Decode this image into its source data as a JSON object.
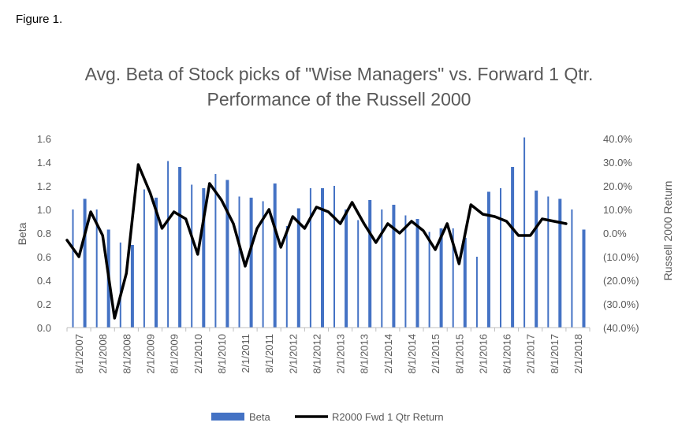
{
  "figure_label": "Figure 1.",
  "chart_data": {
    "type": "bar+line",
    "title": "Avg. Beta of Stock picks of \"Wise Managers\" vs. Forward 1 Qtr. Performance of the Russell 2000",
    "ylabel_left": "Beta",
    "ylabel_right": "Russell 2000 Return",
    "ylim_left": [
      0,
      1.6
    ],
    "ylim_right": [
      -40,
      40
    ],
    "left_ticks": [
      "0.0",
      "0.2",
      "0.4",
      "0.6",
      "0.8",
      "1.0",
      "1.2",
      "1.4",
      "1.6"
    ],
    "right_ticks": [
      "(40.0%)",
      "(30.0%)",
      "(20.0%)",
      "(10.0%)",
      "0.0%",
      "10.0%",
      "20.0%",
      "30.0%",
      "40.0%"
    ],
    "negative_tick_color": "#ff0000",
    "x_tick_labels": [
      "8/1/2007",
      "2/1/2008",
      "8/1/2008",
      "2/1/2009",
      "8/1/2009",
      "2/1/2010",
      "8/1/2010",
      "2/1/2011",
      "8/1/2011",
      "2/1/2012",
      "8/1/2012",
      "2/1/2013",
      "8/1/2013",
      "2/1/2014",
      "8/1/2014",
      "2/1/2015",
      "8/1/2015",
      "2/1/2016",
      "8/1/2016",
      "2/1/2017",
      "8/1/2017",
      "2/1/2018"
    ],
    "legend_position": "bottom",
    "grid": false,
    "series": [
      {
        "name": "Beta",
        "type": "bar",
        "axis": "left",
        "color": "#4472c4",
        "values": [
          1.0,
          1.09,
          1.0,
          0.83,
          0.72,
          0.7,
          1.17,
          1.1,
          1.41,
          1.36,
          1.21,
          1.18,
          1.3,
          1.25,
          1.11,
          1.1,
          1.07,
          1.22,
          0.86,
          1.01,
          1.18,
          1.18,
          1.2,
          1.0,
          0.91,
          1.08,
          1.0,
          1.04,
          0.95,
          0.92,
          0.81,
          0.84,
          0.84,
          0.76,
          0.6,
          1.15,
          1.18,
          1.36,
          1.61,
          1.16,
          1.11,
          1.09,
          1.0,
          0.83
        ]
      },
      {
        "name": "R2000 Fwd 1 Qtr Return",
        "type": "line",
        "axis": "right",
        "color": "#000000",
        "values": [
          -3,
          -10,
          9,
          -1,
          -36,
          -17,
          29,
          17,
          2,
          9,
          6,
          -9,
          21,
          14,
          4,
          -14,
          2,
          10,
          -6,
          7,
          2,
          11,
          9,
          4,
          13,
          4,
          -4,
          4,
          0,
          5,
          1,
          -7,
          4,
          -13,
          12,
          8,
          7,
          5,
          -1,
          -1,
          6,
          5,
          4
        ]
      }
    ]
  }
}
